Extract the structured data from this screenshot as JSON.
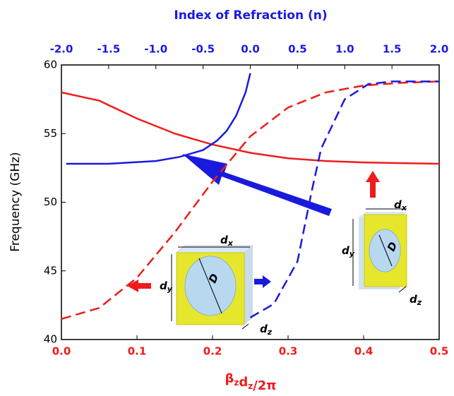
{
  "chart_data": {
    "type": "line",
    "x2_label": "Index of Refraction (n)",
    "x_label": [
      {
        "text": "β",
        "sub": "z"
      },
      {
        "text": "d",
        "sub": "z"
      },
      {
        "text": "/2π"
      }
    ],
    "y_label": "Frequency (GHz)",
    "xlim": [
      0,
      0.5
    ],
    "xticks": [
      {
        "value": 0,
        "label": "0.0"
      },
      0.1,
      0.2,
      0.3,
      0.4,
      0.5
    ],
    "x2lim": [
      -2,
      2
    ],
    "x2ticks": [
      {
        "value": -2,
        "label": "-2.0"
      },
      -1.5,
      {
        "value": -1,
        "label": "-1.0"
      },
      -0.5,
      {
        "value": 0,
        "label": "0.0"
      },
      0.5,
      {
        "value": 1,
        "label": "1.0"
      },
      1.5,
      {
        "value": 2,
        "label": "2.0"
      }
    ],
    "ylim": [
      40,
      60
    ],
    "yticks": [
      40,
      45,
      50,
      55,
      60
    ],
    "x_color": "#ee1c1c",
    "x2_color": "#1a1adf",
    "series": [
      {
        "color": "#ee1c1c",
        "dash": false,
        "axis": "x",
        "x": [
          0,
          0.05,
          0.1,
          0.15,
          0.2,
          0.25,
          0.3,
          0.35,
          0.4,
          0.45,
          0.5
        ],
        "values": [
          58,
          57.4,
          56.1,
          55,
          54.2,
          53.6,
          53.2,
          53,
          52.9,
          52.85,
          52.8
        ]
      },
      {
        "color": "#ee1c1c",
        "dash": true,
        "axis": "x",
        "x": [
          0,
          0.05,
          0.1,
          0.15,
          0.2,
          0.25,
          0.3,
          0.35,
          0.4,
          0.45,
          0.5
        ],
        "values": [
          41.5,
          42.3,
          44.5,
          47.8,
          51.5,
          54.8,
          56.9,
          58,
          58.5,
          58.7,
          58.8
        ]
      },
      {
        "color": "#1a1adf",
        "dash": false,
        "axis": "x2",
        "x": [
          -1.95,
          -1.5,
          -1,
          -0.75,
          -0.5,
          -0.35,
          -0.25,
          -0.15,
          -0.05,
          0
        ],
        "values": [
          52.8,
          52.8,
          53,
          53.3,
          53.8,
          54.5,
          55.2,
          56.3,
          58,
          59.4
        ]
      },
      {
        "color": "#1a1adf",
        "dash": true,
        "axis": "x2",
        "x": [
          0,
          0.25,
          0.5,
          0.65,
          0.75,
          1,
          1.25,
          1.5,
          1.75,
          2
        ],
        "values": [
          41.6,
          42.6,
          45.7,
          50.8,
          53.9,
          57.5,
          58.6,
          58.8,
          58.8,
          58.8
        ]
      }
    ],
    "annotations": [
      {
        "text": "d",
        "sub": "x"
      },
      {
        "text": "d",
        "sub": "y"
      },
      {
        "text": "D"
      },
      {
        "text": "d",
        "sub": "z"
      },
      {
        "text": "d",
        "sub": "x"
      },
      {
        "text": "d",
        "sub": "y"
      },
      {
        "text": "D"
      },
      {
        "text": "d",
        "sub": "z"
      }
    ]
  }
}
